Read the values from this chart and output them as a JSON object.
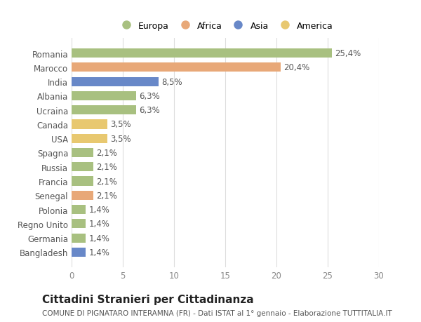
{
  "countries": [
    "Romania",
    "Marocco",
    "India",
    "Albania",
    "Ucraina",
    "Canada",
    "USA",
    "Spagna",
    "Russia",
    "Francia",
    "Senegal",
    "Polonia",
    "Regno Unito",
    "Germania",
    "Bangladesh"
  ],
  "values": [
    25.4,
    20.4,
    8.5,
    6.3,
    6.3,
    3.5,
    3.5,
    2.1,
    2.1,
    2.1,
    2.1,
    1.4,
    1.4,
    1.4,
    1.4
  ],
  "labels": [
    "25,4%",
    "20,4%",
    "8,5%",
    "6,3%",
    "6,3%",
    "3,5%",
    "3,5%",
    "2,1%",
    "2,1%",
    "2,1%",
    "2,1%",
    "1,4%",
    "1,4%",
    "1,4%",
    "1,4%"
  ],
  "continents": [
    "Europa",
    "Africa",
    "Asia",
    "Europa",
    "Europa",
    "America",
    "America",
    "Europa",
    "Europa",
    "Europa",
    "Africa",
    "Europa",
    "Europa",
    "Europa",
    "Asia"
  ],
  "colors": {
    "Europa": "#a8c080",
    "Africa": "#e8a878",
    "Asia": "#6888c8",
    "America": "#e8c870"
  },
  "xlim": [
    0,
    30
  ],
  "xticks": [
    0,
    5,
    10,
    15,
    20,
    25,
    30
  ],
  "title": "Cittadini Stranieri per Cittadinanza",
  "subtitle": "COMUNE DI PIGNATARO INTERAMNA (FR) - Dati ISTAT al 1° gennaio - Elaborazione TUTTITALIA.IT",
  "background_color": "#ffffff",
  "bar_height": 0.65,
  "label_fontsize": 8.5,
  "tick_fontsize": 8.5,
  "title_fontsize": 11,
  "subtitle_fontsize": 7.5,
  "legend_order": [
    "Europa",
    "Africa",
    "Asia",
    "America"
  ]
}
